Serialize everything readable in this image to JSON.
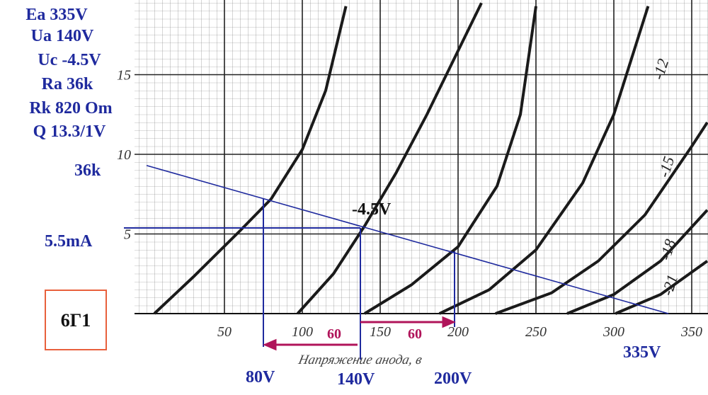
{
  "chart_data": {
    "type": "line",
    "xlim": [
      0,
      360
    ],
    "ylim": [
      0,
      19.6
    ],
    "xticks": [
      50,
      100,
      150,
      200,
      250,
      300,
      350
    ],
    "yticks": [
      5,
      10,
      15
    ],
    "x_label": "Напряжение анода, в",
    "grid": true,
    "series": [
      {
        "color": "#1a1a1a",
        "x": [
          5,
          30,
          60,
          80,
          100,
          115,
          128
        ],
        "values": [
          0,
          2.3,
          5.2,
          7.2,
          10.3,
          14,
          19.3
        ]
      },
      {
        "color": "#1a1a1a",
        "x": [
          97,
          120,
          140,
          160,
          180,
          200,
          215
        ],
        "values": [
          0,
          2.5,
          5.5,
          8.8,
          12.5,
          16.5,
          19.5
        ]
      },
      {
        "color": "#1a1a1a",
        "x": [
          140,
          170,
          200,
          225,
          240,
          250
        ],
        "values": [
          0,
          1.8,
          4.2,
          8,
          12.5,
          19.3
        ]
      },
      {
        "name": "-12",
        "color": "#1a1a1a",
        "x": [
          188,
          220,
          250,
          280,
          300,
          322
        ],
        "values": [
          0,
          1.5,
          4,
          8.2,
          12.5,
          19.3
        ]
      },
      {
        "name": "-15",
        "color": "#1a1a1a",
        "x": [
          224,
          260,
          290,
          320,
          350,
          360
        ],
        "values": [
          0,
          1.3,
          3.3,
          6.2,
          10.5,
          12
        ]
      },
      {
        "name": "-18",
        "color": "#1a1a1a",
        "x": [
          270,
          300,
          330,
          360
        ],
        "values": [
          0,
          1.2,
          3.3,
          6.5
        ]
      },
      {
        "name": "-21",
        "color": "#1a1a1a",
        "x": [
          301,
          330,
          360
        ],
        "values": [
          0,
          1.2,
          3.3
        ]
      }
    ],
    "load_line": {
      "color": "#1f2a9e",
      "x": [
        0,
        335
      ],
      "values": [
        9.3,
        0
      ]
    },
    "params": [
      "Ea 335V",
      "Ua 140V",
      "Uc -4.5V",
      "Ra 36k",
      "Rk 820 Om",
      "Q 13.3/1V"
    ],
    "annotations": {
      "load": "36k",
      "current": "5.5mA",
      "grid_voltage": "-4.5V",
      "ua_min": "80V",
      "ua": "140V",
      "ua_max": "200V",
      "ea": "335V",
      "swing_left": "60",
      "swing_right": "60",
      "tube": "6Г1"
    }
  }
}
